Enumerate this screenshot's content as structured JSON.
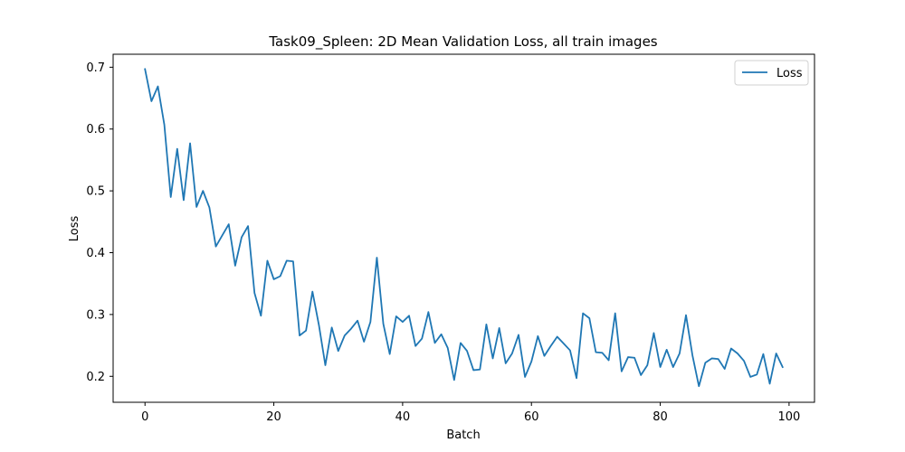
{
  "chart_data": {
    "type": "line",
    "title": "Task09_Spleen: 2D Mean Validation Loss, all train images",
    "xlabel": "Batch",
    "ylabel": "Loss",
    "xlim": [
      -4.95,
      103.95
    ],
    "ylim": [
      0.158,
      0.721
    ],
    "xticks": [
      0,
      20,
      40,
      60,
      80,
      100
    ],
    "yticks": [
      0.2,
      0.3,
      0.4,
      0.5,
      0.6,
      0.7
    ],
    "grid": false,
    "legend_position": "top-right",
    "series": [
      {
        "name": "Loss",
        "color": "#1f77b4",
        "values": [
          0.697,
          0.645,
          0.669,
          0.607,
          0.49,
          0.568,
          0.485,
          0.577,
          0.474,
          0.5,
          0.473,
          0.41,
          0.428,
          0.446,
          0.379,
          0.425,
          0.443,
          0.335,
          0.298,
          0.387,
          0.357,
          0.362,
          0.387,
          0.386,
          0.266,
          0.274,
          0.337,
          0.283,
          0.218,
          0.279,
          0.241,
          0.266,
          0.277,
          0.29,
          0.256,
          0.288,
          0.392,
          0.285,
          0.236,
          0.297,
          0.288,
          0.298,
          0.249,
          0.261,
          0.304,
          0.254,
          0.268,
          0.246,
          0.194,
          0.254,
          0.241,
          0.21,
          0.211,
          0.284,
          0.229,
          0.278,
          0.221,
          0.237,
          0.267,
          0.199,
          0.224,
          0.265,
          0.233,
          0.249,
          0.264,
          0.253,
          0.242,
          0.197,
          0.302,
          0.294,
          0.239,
          0.238,
          0.226,
          0.302,
          0.208,
          0.231,
          0.23,
          0.202,
          0.218,
          0.27,
          0.215,
          0.243,
          0.215,
          0.237,
          0.299,
          0.234,
          0.184,
          0.222,
          0.229,
          0.228,
          0.212,
          0.245,
          0.237,
          0.225,
          0.199,
          0.203,
          0.236,
          0.188,
          0.237,
          0.215
        ]
      }
    ]
  }
}
